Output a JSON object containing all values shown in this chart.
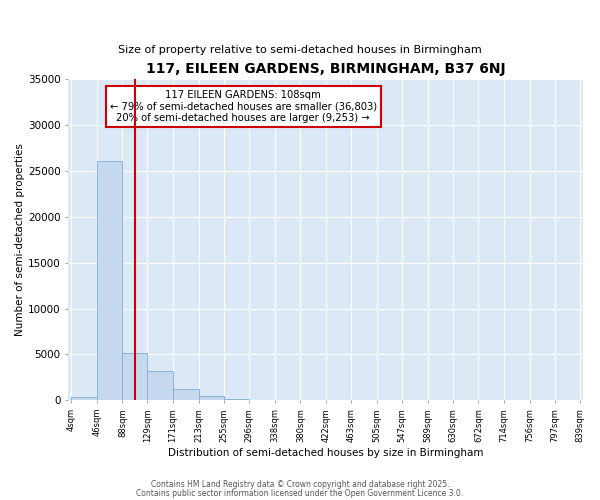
{
  "title": "117, EILEEN GARDENS, BIRMINGHAM, B37 6NJ",
  "subtitle": "Size of property relative to semi-detached houses in Birmingham",
  "xlabel": "Distribution of semi-detached houses by size in Birmingham",
  "ylabel": "Number of semi-detached properties",
  "property_size": 108,
  "annotation_line1": "117 EILEEN GARDENS: 108sqm",
  "annotation_line2": "← 79% of semi-detached houses are smaller (36,803)",
  "annotation_line3": "20% of semi-detached houses are larger (9,253) →",
  "bin_edges": [
    4,
    46,
    88,
    129,
    171,
    213,
    255,
    296,
    338,
    380,
    422,
    463,
    505,
    547,
    589,
    630,
    672,
    714,
    756,
    797,
    839
  ],
  "bar_heights": [
    310,
    26100,
    5100,
    3200,
    1200,
    420,
    190,
    50,
    15,
    5,
    2,
    1,
    0,
    0,
    0,
    0,
    0,
    0,
    0,
    0
  ],
  "bar_color": "#c5d8ee",
  "bar_edge_color": "#7aadd4",
  "red_line_color": "#cc0000",
  "annotation_box_color": "#cc0000",
  "background_color": "#dce8f5",
  "footer_line1": "Contains HM Land Registry data © Crown copyright and database right 2025.",
  "footer_line2": "Contains public sector information licensed under the Open Government Licence 3.0.",
  "ylim": [
    0,
    35000
  ],
  "yticks": [
    0,
    5000,
    10000,
    15000,
    20000,
    25000,
    30000,
    35000
  ]
}
